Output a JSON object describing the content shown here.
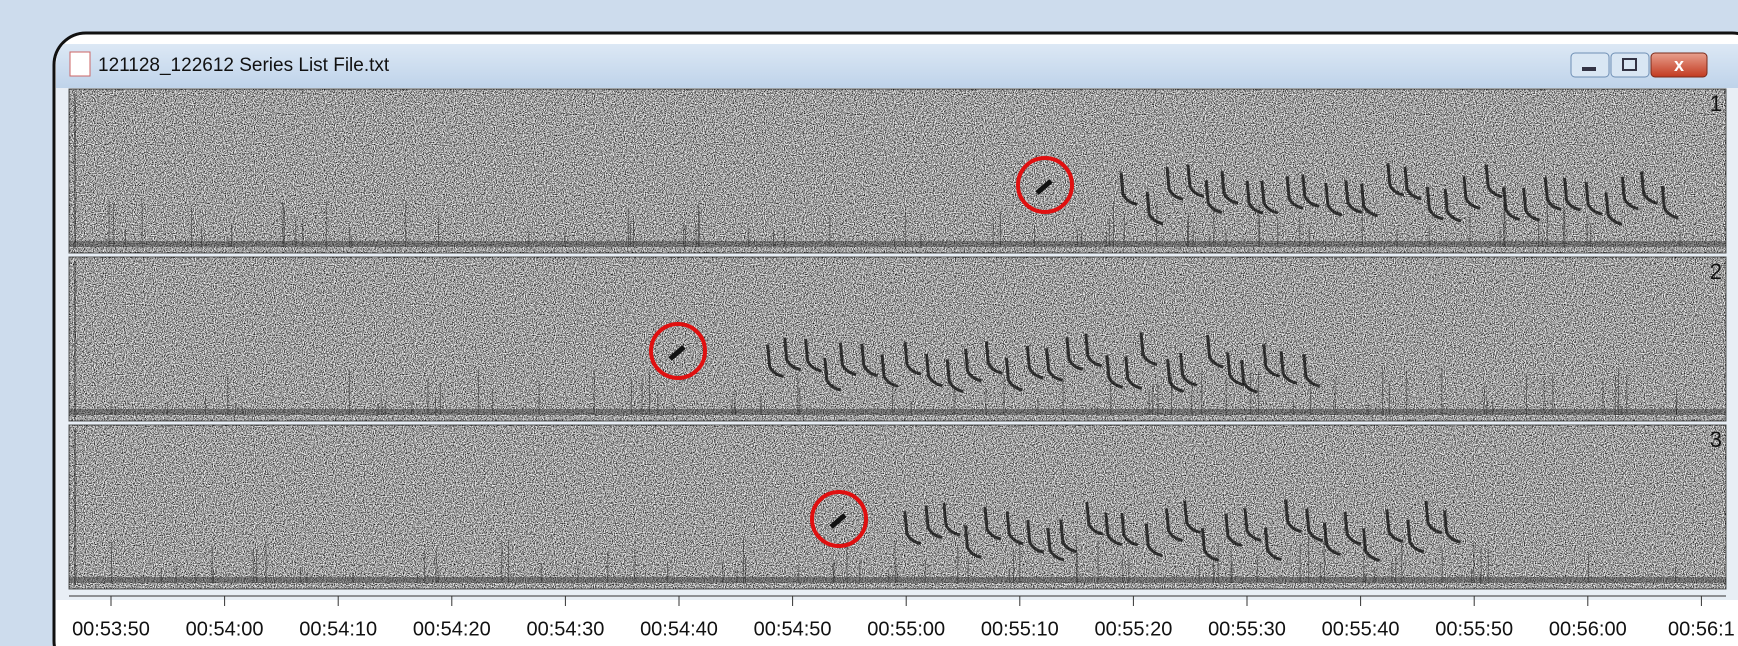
{
  "window": {
    "title": "121128_122612 Series List File.txt"
  },
  "panels": [
    {
      "label": "1"
    },
    {
      "label": "2"
    },
    {
      "label": "3"
    }
  ],
  "time_axis": {
    "labels": [
      "00:53:50",
      "00:54:00",
      "00:54:10",
      "00:54:20",
      "00:54:30",
      "00:54:40",
      "00:54:50",
      "00:55:00",
      "00:55:10",
      "00:55:20",
      "00:55:30",
      "00:55:40",
      "00:55:50",
      "00:56:00",
      "00:56:1"
    ]
  }
}
